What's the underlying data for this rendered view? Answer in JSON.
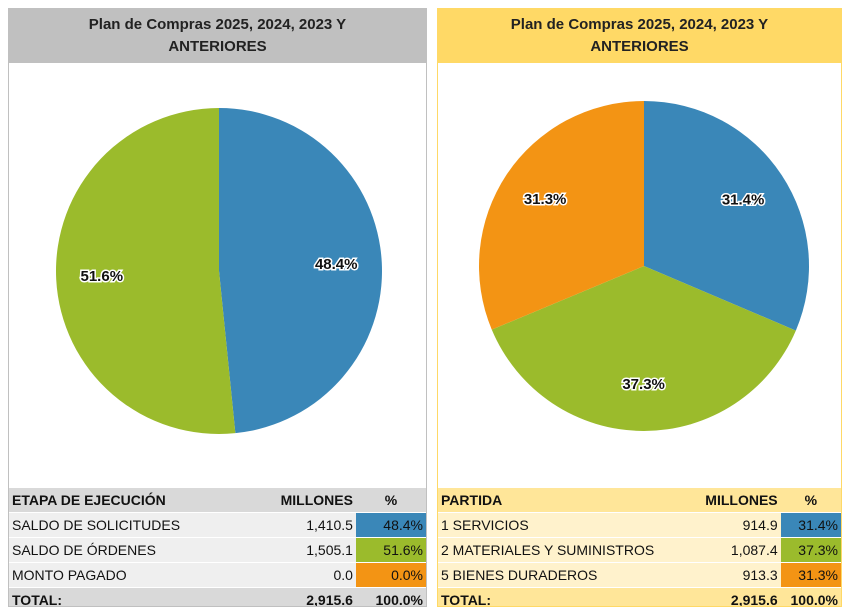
{
  "chart_data": [
    {
      "type": "pie",
      "title": "Plan de Compras 2025, 2024, 2023 Y ANTERIORES",
      "values": [
        48.4,
        51.6
      ],
      "value_labels": [
        "48.4%",
        "51.6%"
      ],
      "colors": [
        "#3a87b8",
        "#9bbb2c"
      ]
    },
    {
      "type": "pie",
      "title": "Plan de Compras 2025, 2024, 2023 Y ANTERIORES",
      "values": [
        31.4,
        37.3,
        31.3
      ],
      "value_labels": [
        "31.4%",
        "37.3%",
        "31.3%"
      ],
      "colors": [
        "#3a87b8",
        "#9bbb2c",
        "#f39414"
      ]
    }
  ],
  "tables": [
    {
      "header": [
        "ETAPA DE EJECUCIÓN",
        "MILLONES",
        "%"
      ],
      "rows": [
        [
          "SALDO DE SOLICITUDES",
          "1,410.5",
          "48.4%"
        ],
        [
          "SALDO DE ÓRDENES",
          "1,505.1",
          "51.6%"
        ],
        [
          "MONTO PAGADO",
          "0.0",
          "0.0%"
        ]
      ],
      "total": [
        "TOTAL:",
        "2,915.6",
        "100.0%"
      ],
      "row_colors": [
        "#3a87b8",
        "#9bbb2c",
        "#f39414"
      ]
    },
    {
      "header": [
        "PARTIDA",
        "MILLONES",
        "%"
      ],
      "rows": [
        [
          "1 SERVICIOS",
          "914.9",
          "31.4%"
        ],
        [
          "2 MATERIALES Y SUMINISTROS",
          "1,087.4",
          "37.3%"
        ],
        [
          "5 BIENES DURADEROS",
          "913.3",
          "31.3%"
        ]
      ],
      "total": [
        "TOTAL:",
        "2,915.6",
        "100.0%"
      ],
      "row_colors": [
        "#3a87b8",
        "#9bbb2c",
        "#f39414"
      ]
    }
  ]
}
